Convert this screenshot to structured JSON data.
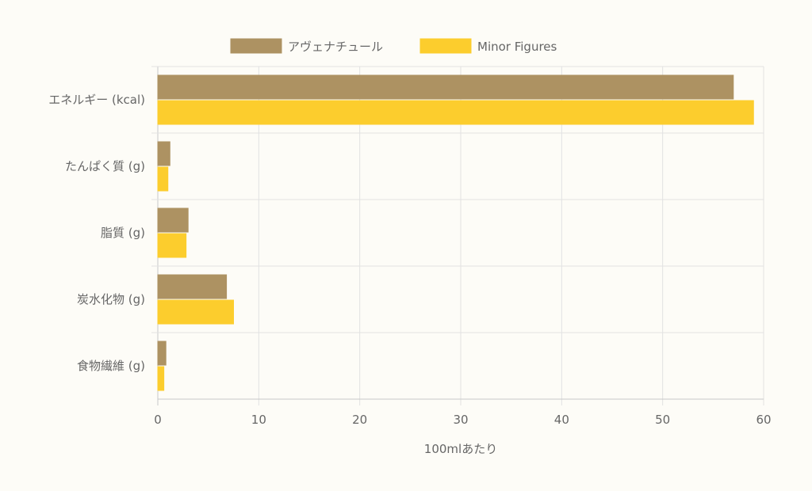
{
  "chart_data": {
    "type": "bar",
    "orientation": "horizontal",
    "categories": [
      "エネルギー (kcal)",
      "たんぱく質 (g)",
      "脂質 (g)",
      "炭水化物 (g)",
      "食物繊維 (g)"
    ],
    "series": [
      {
        "name": "アヴェナチュール",
        "values": [
          57,
          1.2,
          3.0,
          6.8,
          0.8
        ],
        "color": "#ad9262"
      },
      {
        "name": "Minor Figures",
        "values": [
          59,
          1.0,
          2.8,
          7.5,
          0.6
        ],
        "color": "#fccd2d"
      }
    ],
    "xlabel": "100mlあたり",
    "ylabel": "",
    "xlim": [
      0,
      60
    ],
    "xticks": [
      "0",
      "10",
      "20",
      "30",
      "40",
      "50",
      "60"
    ],
    "grid": true,
    "legend_position": "top-center"
  }
}
